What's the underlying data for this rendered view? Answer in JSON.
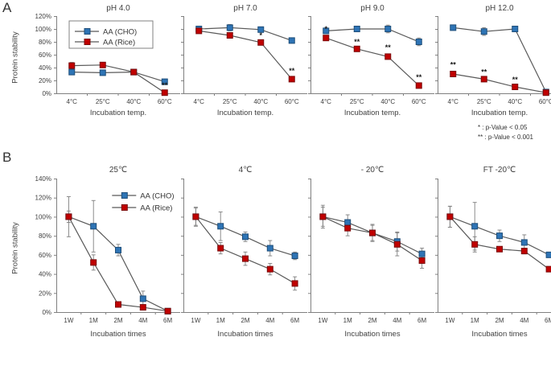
{
  "figure": {
    "panel_a_label": "A",
    "panel_b_label": "B",
    "footnote_1": "*  : p-Value < 0.05",
    "footnote_2": "** : p-Value < 0.001",
    "legend": {
      "cho": "AA (CHO)",
      "rice": "AA (Rice)"
    },
    "colors": {
      "cho_fill": "#2E74B5",
      "cho_edge": "#1F4E79",
      "rice_fill": "#C00000",
      "rice_edge": "#7A0A0A",
      "line": "#595959",
      "error_bar": "#7F7F7F",
      "axis": "#808080",
      "text": "#404040",
      "star": "#1A1A1A"
    }
  },
  "chart_data": [
    {
      "type": "line",
      "group": "A",
      "title": "pH 4.0",
      "xlabel": "Incubation temp.",
      "ylabel": "Protein stability",
      "ylim": [
        0,
        120
      ],
      "ytick_step": 20,
      "grid": false,
      "show_y_labels": true,
      "legend": "box",
      "last": false,
      "categories": [
        "4°C",
        "25°C",
        "40°C",
        "60°C"
      ],
      "series": [
        {
          "name": "AA (CHO)",
          "key": "cho",
          "values": [
            33,
            32,
            33,
            18
          ],
          "errors": [
            0,
            0,
            0,
            2
          ]
        },
        {
          "name": "AA (Rice)",
          "key": "rice",
          "values": [
            43,
            44,
            33,
            1
          ],
          "errors": [
            5,
            2,
            0,
            0
          ]
        }
      ],
      "annotations": [
        {
          "series": 1,
          "index": 3,
          "text": "**"
        }
      ]
    },
    {
      "type": "line",
      "group": "A",
      "title": "pH 7.0",
      "xlabel": "Incubation temp.",
      "ylabel": "Protein stability",
      "ylim": [
        0,
        120
      ],
      "ytick_step": 20,
      "grid": false,
      "show_y_labels": false,
      "legend": "none",
      "last": false,
      "categories": [
        "4°C",
        "25°C",
        "40°C",
        "60°C"
      ],
      "series": [
        {
          "name": "AA (CHO)",
          "key": "cho",
          "values": [
            100,
            102,
            99,
            82
          ],
          "errors": [
            0,
            5,
            0,
            3
          ]
        },
        {
          "name": "AA (Rice)",
          "key": "rice",
          "values": [
            97,
            90,
            79,
            22
          ],
          "errors": [
            3,
            4,
            0,
            2
          ]
        }
      ],
      "annotations": [
        {
          "series": 1,
          "index": 2,
          "text": "*"
        },
        {
          "series": 1,
          "index": 3,
          "text": "**"
        }
      ]
    },
    {
      "type": "line",
      "group": "A",
      "title": "pH 9.0",
      "xlabel": "Incubation temp.",
      "ylabel": "Protein stability",
      "ylim": [
        0,
        120
      ],
      "ytick_step": 20,
      "grid": false,
      "show_y_labels": false,
      "legend": "none",
      "last": false,
      "categories": [
        "4°C",
        "25°C",
        "40°C",
        "60°C"
      ],
      "series": [
        {
          "name": "AA (CHO)",
          "key": "cho",
          "values": [
            97,
            100,
            100,
            80
          ],
          "errors": [
            0,
            4,
            6,
            6
          ]
        },
        {
          "name": "AA (Rice)",
          "key": "rice",
          "values": [
            86,
            69,
            57,
            12
          ],
          "errors": [
            3,
            0,
            3,
            2
          ]
        }
      ],
      "annotations": [
        {
          "series": 1,
          "index": 0,
          "text": "*"
        },
        {
          "series": 1,
          "index": 1,
          "text": "**"
        },
        {
          "series": 1,
          "index": 2,
          "text": "**"
        },
        {
          "series": 1,
          "index": 3,
          "text": "**"
        }
      ]
    },
    {
      "type": "line",
      "group": "A",
      "title": "pH 12.0",
      "xlabel": "Incubation temp.",
      "ylabel": "Protein stability",
      "ylim": [
        0,
        120
      ],
      "ytick_step": 20,
      "grid": false,
      "show_y_labels": false,
      "legend": "none",
      "last": true,
      "categories": [
        "4°C",
        "25°C",
        "40°C",
        "60°C"
      ],
      "series": [
        {
          "name": "AA (CHO)",
          "key": "cho",
          "values": [
            102,
            96,
            100,
            2
          ],
          "errors": [
            0,
            6,
            4,
            0
          ]
        },
        {
          "name": "AA (Rice)",
          "key": "rice",
          "values": [
            30,
            22,
            10,
            1
          ],
          "errors": [
            3,
            0,
            0,
            0
          ]
        }
      ],
      "annotations": [
        {
          "series": 1,
          "index": 0,
          "text": "**"
        },
        {
          "series": 1,
          "index": 1,
          "text": "**"
        },
        {
          "series": 1,
          "index": 2,
          "text": "**"
        }
      ]
    },
    {
      "type": "line",
      "group": "B",
      "title": "25℃",
      "xlabel": "Incubation times",
      "ylabel": "Protein stability",
      "ylim": [
        0,
        140
      ],
      "ytick_step": 20,
      "grid": false,
      "show_y_labels": true,
      "legend": "plain",
      "last": false,
      "categories": [
        "1W",
        "1M",
        "2M",
        "4M",
        "6M"
      ],
      "series": [
        {
          "name": "AA (CHO)",
          "key": "cho",
          "values": [
            100,
            90,
            65,
            14,
            1
          ],
          "errors": [
            21,
            27,
            6,
            8,
            0
          ]
        },
        {
          "name": "AA (Rice)",
          "key": "rice",
          "values": [
            100,
            52,
            8,
            5,
            1
          ],
          "errors": [
            6,
            8,
            0,
            2,
            0
          ]
        }
      ],
      "annotations": []
    },
    {
      "type": "line",
      "group": "B",
      "title": "4℃",
      "xlabel": "Incubation times",
      "ylabel": "Protein stability",
      "ylim": [
        0,
        140
      ],
      "ytick_step": 20,
      "grid": false,
      "show_y_labels": false,
      "legend": "none",
      "last": false,
      "categories": [
        "1W",
        "1M",
        "2M",
        "4M",
        "6M"
      ],
      "series": [
        {
          "name": "AA (CHO)",
          "key": "cho",
          "values": [
            100,
            90,
            79,
            67,
            59
          ],
          "errors": [
            9,
            15,
            5,
            8,
            4
          ]
        },
        {
          "name": "AA (Rice)",
          "key": "rice",
          "values": [
            100,
            67,
            56,
            45,
            30
          ],
          "errors": [
            10,
            6,
            7,
            6,
            7
          ]
        }
      ],
      "annotations": []
    },
    {
      "type": "line",
      "group": "B",
      "title": "- 20℃",
      "xlabel": "Incubation times",
      "ylabel": "Protein stability",
      "ylim": [
        0,
        140
      ],
      "ytick_step": 20,
      "grid": false,
      "show_y_labels": false,
      "legend": "none",
      "last": false,
      "categories": [
        "1W",
        "1M",
        "2M",
        "4M",
        "6M"
      ],
      "series": [
        {
          "name": "AA (CHO)",
          "key": "cho",
          "values": [
            100,
            94,
            83,
            74,
            61
          ],
          "errors": [
            12,
            8,
            9,
            10,
            6
          ]
        },
        {
          "name": "AA (Rice)",
          "key": "rice",
          "values": [
            100,
            88,
            83,
            71,
            54
          ],
          "errors": [
            10,
            8,
            8,
            12,
            8
          ]
        }
      ],
      "annotations": []
    },
    {
      "type": "line",
      "group": "B",
      "title": "FT -20℃",
      "xlabel": "Incubation times",
      "ylabel": "Protein stability",
      "ylim": [
        0,
        140
      ],
      "ytick_step": 20,
      "grid": false,
      "show_y_labels": false,
      "legend": "none",
      "last": true,
      "categories": [
        "1W",
        "1M",
        "2M",
        "4M",
        "6M"
      ],
      "series": [
        {
          "name": "AA (CHO)",
          "key": "cho",
          "values": [
            100,
            90,
            80,
            73,
            60
          ],
          "errors": [
            11,
            25,
            6,
            8,
            0
          ]
        },
        {
          "name": "AA (Rice)",
          "key": "rice",
          "values": [
            100,
            71,
            66,
            64,
            45
          ],
          "errors": [
            11,
            8,
            0,
            3,
            0
          ]
        }
      ],
      "annotations": []
    }
  ]
}
